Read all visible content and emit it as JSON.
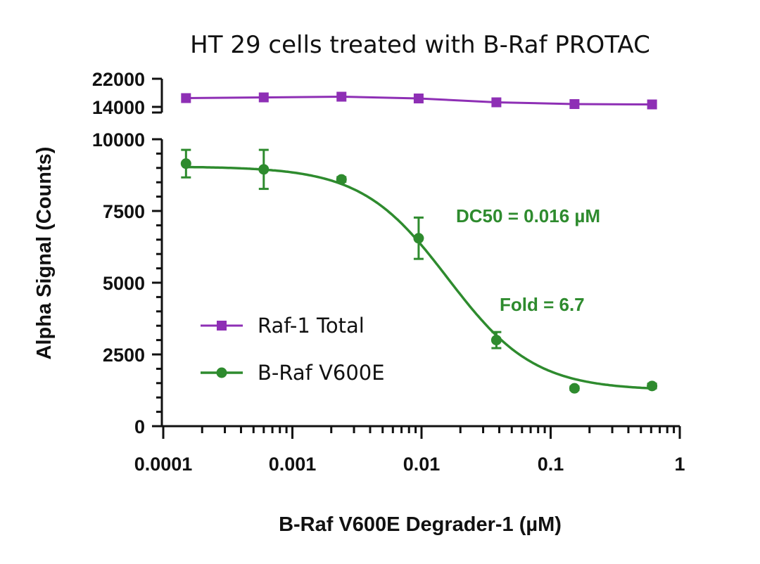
{
  "chart_data": {
    "type": "line",
    "title": "HT 29 cells treated with B-Raf PROTAC",
    "xlabel": "B-Raf V600E Degrader-1 (µM)",
    "ylabel": "Alpha Signal (Counts)",
    "x_scale": "log",
    "xlim": [
      0.0001,
      1
    ],
    "x_ticks": [
      "0.0001",
      "0.001",
      "0.01",
      "0.1",
      "1"
    ],
    "y_axis_segments": [
      {
        "range": [
          0,
          10000
        ],
        "ticks": [
          "0",
          "2500",
          "5000",
          "7500",
          "10000"
        ]
      },
      {
        "range": [
          14000,
          22000
        ],
        "ticks": [
          "14000",
          "22000"
        ]
      }
    ],
    "x": [
      0.00015,
      0.0006,
      0.0024,
      0.0095,
      0.038,
      0.153,
      0.61
    ],
    "series": [
      {
        "name": "Raf-1 Total",
        "color": "#8e2fb5",
        "marker": "square",
        "values": [
          16500,
          16700,
          16900,
          16400,
          15300,
          14800,
          14700
        ]
      },
      {
        "name": "B-Raf V600E",
        "color": "#2e8b2e",
        "marker": "circle",
        "values": [
          9150,
          8950,
          8600,
          6550,
          3000,
          1320,
          1400
        ],
        "error": [
          480,
          680,
          80,
          720,
          280,
          60,
          80
        ],
        "fit": {
          "top": 9050,
          "bottom": 1250,
          "ec50": 0.016,
          "hill": 1.3
        }
      }
    ],
    "annotations": [
      "DC50 = 0.016 µM",
      "Fold = 6.7"
    ],
    "legend": "center-left",
    "grid": false
  }
}
